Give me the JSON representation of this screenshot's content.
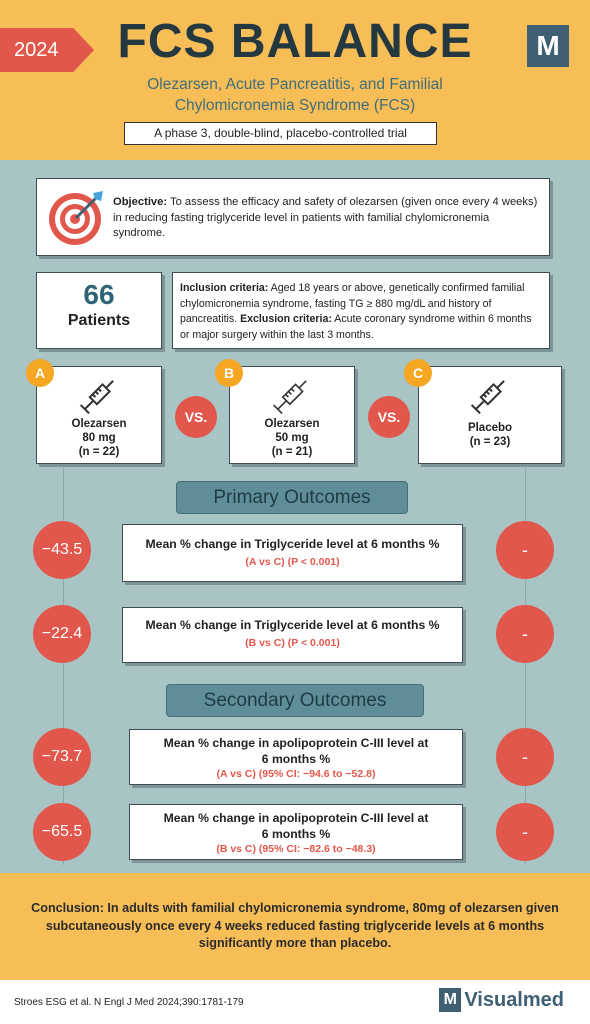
{
  "header": {
    "year": "2024",
    "title": "FCS BALANCE",
    "logo_letter": "M",
    "subtitle": "Olezarsen, Acute Pancreatitis, and Familial Chylomicronemia Syndrome (FCS)",
    "trial_design": "A phase 3, double-blind, placebo-controlled trial"
  },
  "objective": {
    "label": "Objective:",
    "text": " To assess the efficacy and safety of olezarsen (given once every 4 weeks) in reducing fasting triglyceride level in patients with familial chylomicronemia syndrome."
  },
  "patients": {
    "count": "66",
    "label": "Patients"
  },
  "criteria": {
    "inclusion_label": "Inclusion criteria:",
    "inclusion_text": " Aged 18 years or above, genetically confirmed familial chylomicronemia syndrome, fasting TG ≥ 880 mg/dL and history of pancreatitis. ",
    "exclusion_label": "Exclusion criteria:",
    "exclusion_text": " Acute coronary syndrome within 6 months or major surgery within the last 3 months."
  },
  "arms": [
    {
      "badge": "A",
      "line1": "Olezarsen",
      "line2": "80 mg",
      "line3": "(n = 22)"
    },
    {
      "badge": "B",
      "line1": "Olezarsen",
      "line2": "50 mg",
      "line3": "(n = 21)"
    },
    {
      "badge": "C",
      "line1": "Placebo",
      "line2": "(n = 23)",
      "line3": ""
    }
  ],
  "vs_label": "VS.",
  "primary": {
    "heading": "Primary Outcomes",
    "rows": [
      {
        "value": "−43.5",
        "title": "Mean % change in Triglyceride level at 6 months %",
        "stat": "(A vs C)  (P < 0.001)",
        "placebo": "-"
      },
      {
        "value": "−22.4",
        "title": "Mean % change in Triglyceride level at 6 months %",
        "stat": "(B vs C)  (P < 0.001)",
        "placebo": "-"
      }
    ]
  },
  "secondary": {
    "heading": "Secondary Outcomes",
    "rows": [
      {
        "value": "−73.7",
        "title": "Mean % change in apolipoprotein C-III level at 6 months %",
        "stat": "(A vs C)  (95% CI: −94.6 to −52.8)",
        "placebo": "-"
      },
      {
        "value": "−65.5",
        "title": "Mean % change in apolipoprotein C-III level at 6 months %",
        "stat": "(B vs C)  (95% CI: −82.6 to −48.3)",
        "placebo": "-"
      }
    ]
  },
  "conclusion": {
    "label": "Conclusion:",
    "text": " In adults with familial chylomicronemia syndrome, 80mg of olezarsen given subcutaneously once every 4 weeks reduced fasting triglyceride levels at 6 months significantly more than placebo."
  },
  "footer": {
    "citation": "Stroes ESG et al. N Engl J Med 2024;390:1781-179",
    "brand_letter": "M",
    "brand": "Visualmed"
  },
  "colors": {
    "header_bg": "#f7bd57",
    "body_bg": "#a9c4c5",
    "accent_red": "#e2574c",
    "badge_orange": "#f5a623",
    "teal_dark": "#3f5f73"
  },
  "icons": [
    "target-icon",
    "syringe-icon"
  ]
}
